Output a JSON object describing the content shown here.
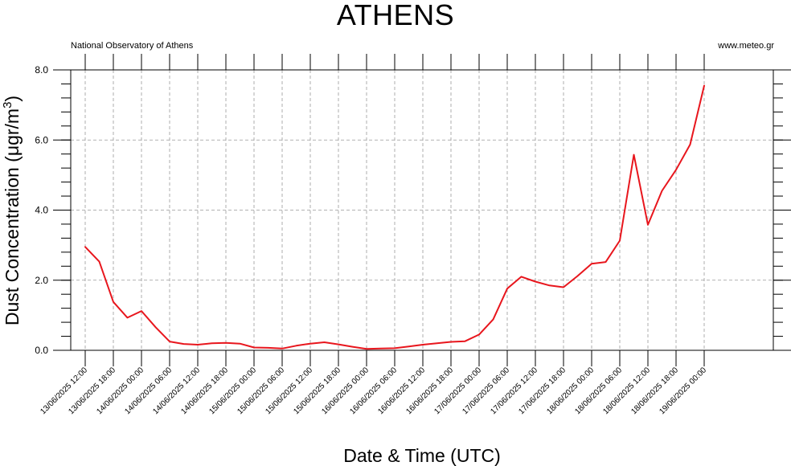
{
  "header": {
    "title": "ATHENS",
    "source_left": "National Observatory of Athens",
    "source_right": "www.meteo.gr"
  },
  "chart_data": {
    "type": "line",
    "title": "ATHENS",
    "xlabel": "Date & Time (UTC)",
    "ylabel_main": "Dust Concentration (μgr/m",
    "ylabel_sup": "3",
    "ylabel_close": ")",
    "ylim": [
      0,
      8
    ],
    "y_ticks": [
      "0.0",
      "2.0",
      "4.0",
      "6.0",
      "8.0"
    ],
    "grid": true,
    "line_color": "#e8161d",
    "x_tick_labels": [
      "13/06/2025 12:00",
      "13/06/2025 18:00",
      "14/06/2025 00:00",
      "14/06/2025 06:00",
      "14/06/2025 12:00",
      "14/06/2025 18:00",
      "15/06/2025 00:00",
      "15/06/2025 06:00",
      "15/06/2025 12:00",
      "15/06/2025 18:00",
      "16/06/2025 00:00",
      "16/06/2025 06:00",
      "16/06/2025 12:00",
      "16/06/2025 18:00",
      "17/06/2025 00:00",
      "17/06/2025 06:00",
      "17/06/2025 12:00",
      "17/06/2025 18:00",
      "18/06/2025 00:00",
      "18/06/2025 06:00",
      "18/06/2025 12:00",
      "18/06/2025 18:00",
      "19/06/2025 00:00"
    ],
    "series": [
      {
        "x": [
          "13/06/2025 12:00",
          "13/06/2025 15:00",
          "13/06/2025 18:00",
          "13/06/2025 21:00",
          "14/06/2025 00:00",
          "14/06/2025 03:00",
          "14/06/2025 06:00",
          "14/06/2025 09:00",
          "14/06/2025 12:00",
          "14/06/2025 15:00",
          "14/06/2025 18:00",
          "14/06/2025 21:00",
          "15/06/2025 00:00",
          "15/06/2025 03:00",
          "15/06/2025 06:00",
          "15/06/2025 09:00",
          "15/06/2025 12:00",
          "15/06/2025 15:00",
          "15/06/2025 18:00",
          "15/06/2025 21:00",
          "16/06/2025 00:00",
          "16/06/2025 03:00",
          "16/06/2025 06:00",
          "16/06/2025 09:00",
          "16/06/2025 12:00",
          "16/06/2025 15:00",
          "16/06/2025 18:00",
          "16/06/2025 21:00",
          "17/06/2025 00:00",
          "17/06/2025 03:00",
          "17/06/2025 06:00",
          "17/06/2025 09:00",
          "17/06/2025 12:00",
          "17/06/2025 15:00",
          "17/06/2025 18:00",
          "17/06/2025 21:00",
          "18/06/2025 00:00",
          "18/06/2025 03:00",
          "18/06/2025 06:00",
          "18/06/2025 09:00",
          "18/06/2025 12:00",
          "18/06/2025 15:00",
          "18/06/2025 18:00",
          "18/06/2025 21:00",
          "19/06/2025 00:00"
        ],
        "values": [
          2.95,
          2.53,
          1.38,
          0.93,
          1.12,
          0.66,
          0.25,
          0.18,
          0.16,
          0.2,
          0.21,
          0.19,
          0.08,
          0.07,
          0.05,
          0.13,
          0.19,
          0.23,
          0.17,
          0.1,
          0.04,
          0.05,
          0.06,
          0.11,
          0.16,
          0.2,
          0.24,
          0.26,
          0.45,
          0.88,
          1.76,
          2.1,
          1.96,
          1.85,
          1.8,
          2.12,
          2.47,
          2.52,
          3.13,
          5.58,
          3.58,
          4.55,
          5.15,
          5.87,
          7.55
        ]
      }
    ]
  }
}
